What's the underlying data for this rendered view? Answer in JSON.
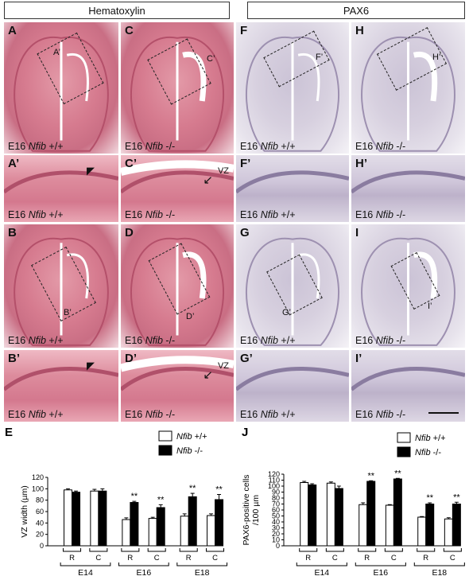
{
  "headers": {
    "left": "Hematoxylin",
    "right": "PAX6"
  },
  "panels": [
    {
      "id": "A",
      "letter": "A",
      "cap_pre": "E16 ",
      "cap_gene": "Nfib",
      "cap_post": " +/+",
      "box_label": "A’"
    },
    {
      "id": "C",
      "letter": "C",
      "cap_pre": "E16 ",
      "cap_gene": "Nfib",
      "cap_post": " -/-",
      "box_label": "C’"
    },
    {
      "id": "F",
      "letter": "F",
      "cap_pre": "E16 ",
      "cap_gene": "Nfib",
      "cap_post": " +/+",
      "box_label": "F’"
    },
    {
      "id": "H",
      "letter": "H",
      "cap_pre": "E16 ",
      "cap_gene": "Nfib",
      "cap_post": " -/-",
      "box_label": "H’"
    },
    {
      "id": "A2",
      "letter": "A’",
      "cap_pre": "E16 ",
      "cap_gene": "Nfib",
      "cap_post": " +/+"
    },
    {
      "id": "C2",
      "letter": "C’",
      "cap_pre": "E16 ",
      "cap_gene": "Nfib",
      "cap_post": " -/-",
      "vz": "VZ"
    },
    {
      "id": "F2",
      "letter": "F’",
      "cap_pre": "E16 ",
      "cap_gene": "Nfib",
      "cap_post": " +/+"
    },
    {
      "id": "H2",
      "letter": "H’",
      "cap_pre": "E16 ",
      "cap_gene": "Nfib",
      "cap_post": " -/-"
    },
    {
      "id": "B",
      "letter": "B",
      "cap_pre": "E16 ",
      "cap_gene": "Nfib",
      "cap_post": " +/+",
      "box_label": "B’"
    },
    {
      "id": "D",
      "letter": "D",
      "cap_pre": "E16 ",
      "cap_gene": "Nfib",
      "cap_post": " -/-",
      "box_label": "D’"
    },
    {
      "id": "G",
      "letter": "G",
      "cap_pre": "E16 ",
      "cap_gene": "Nfib",
      "cap_post": " +/+",
      "box_label": "G’"
    },
    {
      "id": "I",
      "letter": "I",
      "cap_pre": "E16 ",
      "cap_gene": "Nfib",
      "cap_post": " -/-",
      "box_label": "I’"
    },
    {
      "id": "B2",
      "letter": "B’",
      "cap_pre": "E16 ",
      "cap_gene": "Nfib",
      "cap_post": " +/+"
    },
    {
      "id": "D2",
      "letter": "D’",
      "cap_pre": "E16 ",
      "cap_gene": "Nfib",
      "cap_post": " -/-",
      "vz": "VZ"
    },
    {
      "id": "G2",
      "letter": "G’",
      "cap_pre": "E16 ",
      "cap_gene": "Nfib",
      "cap_post": " +/+"
    },
    {
      "id": "I2",
      "letter": "I’",
      "cap_pre": "E16 ",
      "cap_gene": "Nfib",
      "cap_post": " -/-"
    }
  ],
  "chart_data": [
    {
      "type": "bar",
      "panel_letter": "E",
      "ylabel": "VZ width (µm)",
      "ylim": [
        0,
        120
      ],
      "yticks": [
        0,
        20,
        40,
        60,
        80,
        100,
        120
      ],
      "categories": [
        "R",
        "C",
        "R",
        "C",
        "R",
        "C"
      ],
      "groups": [
        "E14",
        "E16",
        "E18"
      ],
      "series": [
        {
          "name": "Nfib +/+",
          "color": "#ffffff",
          "values": [
            98,
            96,
            46,
            48,
            52,
            53
          ],
          "errors": [
            2,
            3,
            3,
            2,
            4,
            3
          ]
        },
        {
          "name": "Nfib -/-",
          "color": "#000000",
          "values": [
            94,
            96,
            76,
            67,
            86,
            81
          ],
          "errors": [
            2,
            4,
            2,
            5,
            6,
            9
          ]
        }
      ],
      "significance": [
        "",
        "",
        "**",
        "**",
        "**",
        "**"
      ],
      "legend": {
        "placement": "top-right",
        "entries": [
          {
            "gene": "Nfib",
            "suffix": " +/+"
          },
          {
            "gene": "Nfib",
            "suffix": " -/-"
          }
        ]
      }
    },
    {
      "type": "bar",
      "panel_letter": "J",
      "ylabel_line1": "PAX6-positive cells",
      "ylabel_line2": "/100 µm",
      "ylim": [
        0,
        120
      ],
      "yticks": [
        0,
        10,
        20,
        30,
        40,
        50,
        60,
        70,
        80,
        90,
        100,
        110,
        120
      ],
      "categories": [
        "R",
        "C",
        "R",
        "C",
        "R",
        "C"
      ],
      "groups": [
        "E14",
        "E16",
        "E18"
      ],
      "series": [
        {
          "name": "Nfib +/+",
          "color": "#ffffff",
          "values": [
            106,
            105,
            69,
            68,
            48,
            45
          ],
          "errors": [
            2,
            2,
            3,
            1,
            1,
            2
          ]
        },
        {
          "name": "Nfib -/-",
          "color": "#000000",
          "values": [
            102,
            96,
            108,
            112,
            70,
            70
          ],
          "errors": [
            2,
            4,
            1,
            1,
            2,
            3
          ]
        }
      ],
      "significance": [
        "",
        "",
        "**",
        "**",
        "**",
        "**"
      ],
      "legend": {
        "placement": "top-right",
        "entries": [
          {
            "gene": "Nfib",
            "suffix": " +/+"
          },
          {
            "gene": "Nfib",
            "suffix": " -/-"
          }
        ]
      }
    }
  ]
}
